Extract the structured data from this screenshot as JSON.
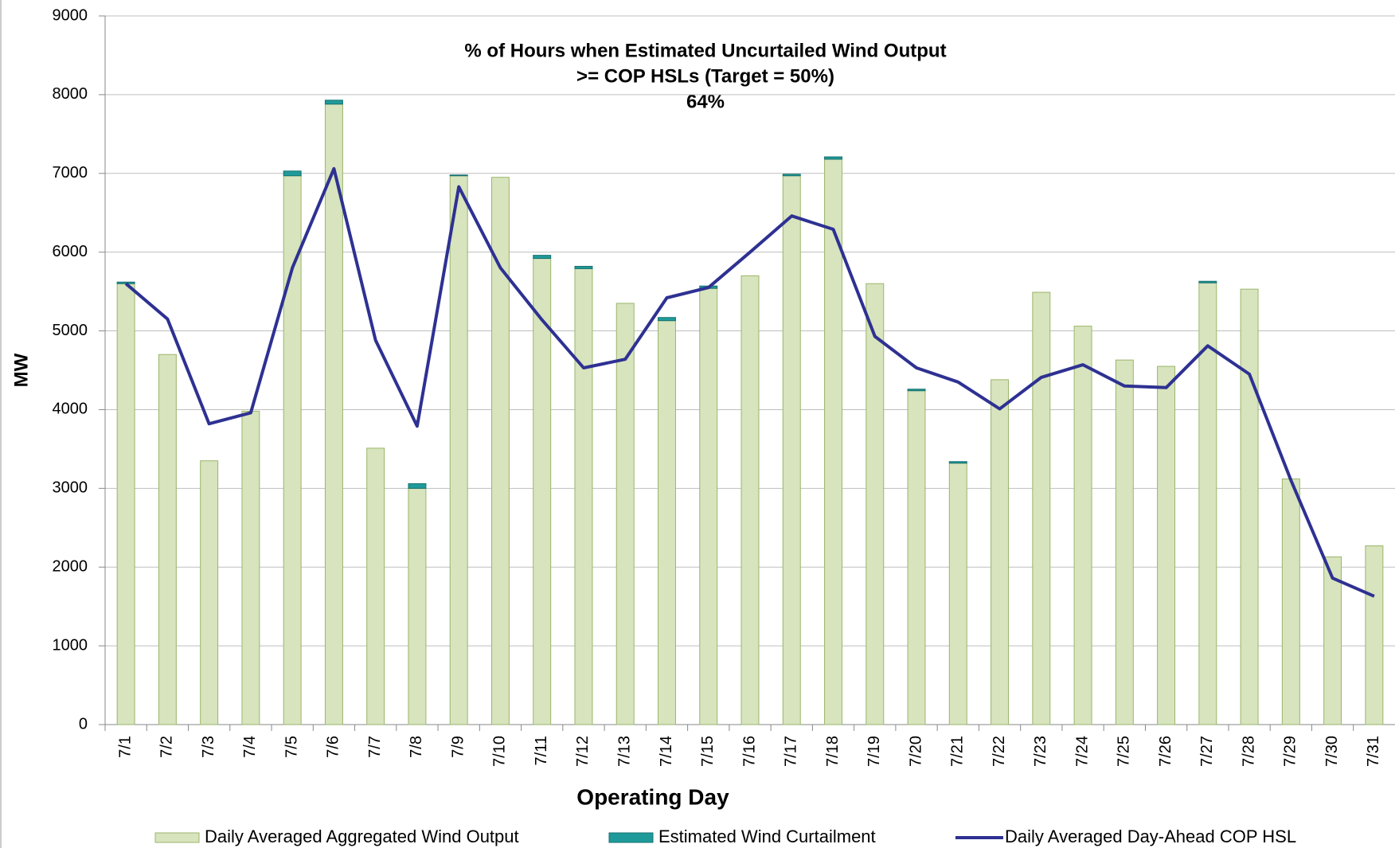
{
  "chart_data": {
    "type": "bar",
    "annotation": [
      "% of Hours when Estimated Uncurtailed Wind Output",
      ">= COP HSLs (Target = 50%)",
      "64%"
    ],
    "y_label": "MW",
    "x_label": "Operating Day",
    "categories": [
      "7/1",
      "7/2",
      "7/3",
      "7/4",
      "7/5",
      "7/6",
      "7/7",
      "7/8",
      "7/9",
      "7/10",
      "7/11",
      "7/12",
      "7/13",
      "7/14",
      "7/15",
      "7/16",
      "7/17",
      "7/18",
      "7/19",
      "7/20",
      "7/21",
      "7/22",
      "7/23",
      "7/24",
      "7/25",
      "7/26",
      "7/27",
      "7/28",
      "7/29",
      "7/30",
      "7/31"
    ],
    "series": [
      {
        "name": "Daily Averaged Aggregated Wind Output",
        "color": "#d7e4bd",
        "stack": true,
        "values": [
          5600,
          4700,
          3350,
          3980,
          6970,
          7880,
          3510,
          3000,
          6970,
          6950,
          5920,
          5790,
          5350,
          5130,
          5540,
          5700,
          6970,
          7180,
          5600,
          4240,
          3320,
          4380,
          5490,
          5060,
          4630,
          4550,
          5610,
          5530,
          3120,
          2130,
          2270
        ]
      },
      {
        "name": "Estimated Wind Curtailment",
        "color": "#1f9a9a",
        "stack": true,
        "values": [
          20,
          0,
          0,
          0,
          60,
          50,
          0,
          60,
          10,
          0,
          40,
          30,
          0,
          40,
          30,
          0,
          20,
          30,
          0,
          20,
          20,
          0,
          0,
          0,
          0,
          0,
          20,
          0,
          0,
          0,
          0
        ]
      },
      {
        "name": "Daily Averaged Day-Ahead COP HSL",
        "color": "#2e3192",
        "type": "line",
        "values": [
          5600,
          5150,
          3820,
          3960,
          5800,
          7060,
          4880,
          3790,
          6830,
          5800,
          5140,
          4530,
          4640,
          5420,
          5550,
          6000,
          6460,
          6290,
          4930,
          4530,
          4350,
          4010,
          4410,
          4570,
          4300,
          4280,
          4810,
          4450,
          3100,
          1860,
          1630
        ]
      }
    ],
    "ylim": [
      0,
      9000
    ],
    "yticks": [
      0,
      1000,
      2000,
      3000,
      4000,
      5000,
      6000,
      7000,
      8000,
      9000
    ],
    "grid": true
  }
}
